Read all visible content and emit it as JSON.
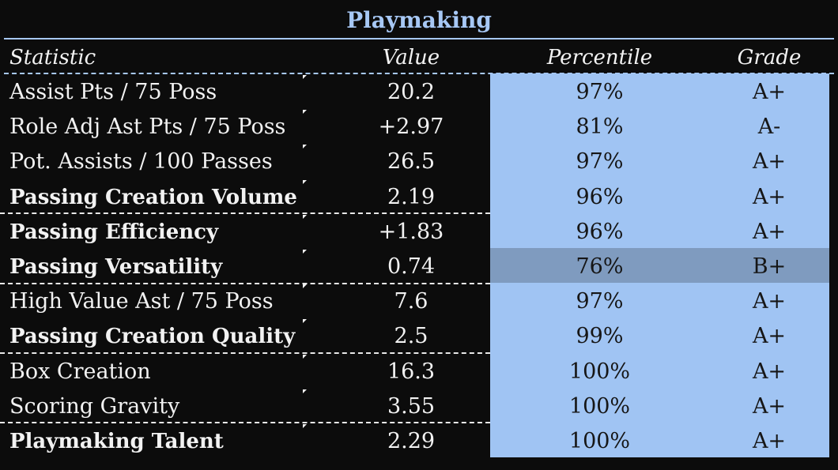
{
  "title": "Playmaking",
  "columns": {
    "statistic": "Statistic",
    "value": "Value",
    "percentile": "Percentile",
    "grade": "Grade"
  },
  "rows": [
    {
      "statistic": "Assist Pts / 75 Poss",
      "value": "20.2",
      "percentile": "97%",
      "grade": "A+",
      "bold": false
    },
    {
      "statistic": "Role Adj Ast Pts / 75 Poss",
      "value": "+2.97",
      "percentile": "81%",
      "grade": "A-",
      "bold": false
    },
    {
      "statistic": "Pot. Assists / 100 Passes",
      "value": "26.5",
      "percentile": "97%",
      "grade": "A+",
      "bold": false
    },
    {
      "statistic": "Passing Creation Volume",
      "value": "2.19",
      "percentile": "96%",
      "grade": "A+",
      "bold": true
    },
    {
      "statistic": "Passing Efficiency",
      "value": "+1.83",
      "percentile": "96%",
      "grade": "A+",
      "bold": true
    },
    {
      "statistic": "Passing Versatility",
      "value": "0.74",
      "percentile": "76%",
      "grade": "B+",
      "bold": true
    },
    {
      "statistic": "High Value Ast / 75 Poss",
      "value": "7.6",
      "percentile": "97%",
      "grade": "A+",
      "bold": false
    },
    {
      "statistic": "Passing Creation Quality",
      "value": "2.5",
      "percentile": "99%",
      "grade": "A+",
      "bold": true
    },
    {
      "statistic": "Box Creation",
      "value": "16.3",
      "percentile": "100%",
      "grade": "A+",
      "bold": false
    },
    {
      "statistic": "Scoring Gravity",
      "value": "3.55",
      "percentile": "100%",
      "grade": "A+",
      "bold": false
    },
    {
      "statistic": "Playmaking Talent",
      "value": "2.29",
      "percentile": "100%",
      "grade": "A+",
      "bold": true
    }
  ]
}
